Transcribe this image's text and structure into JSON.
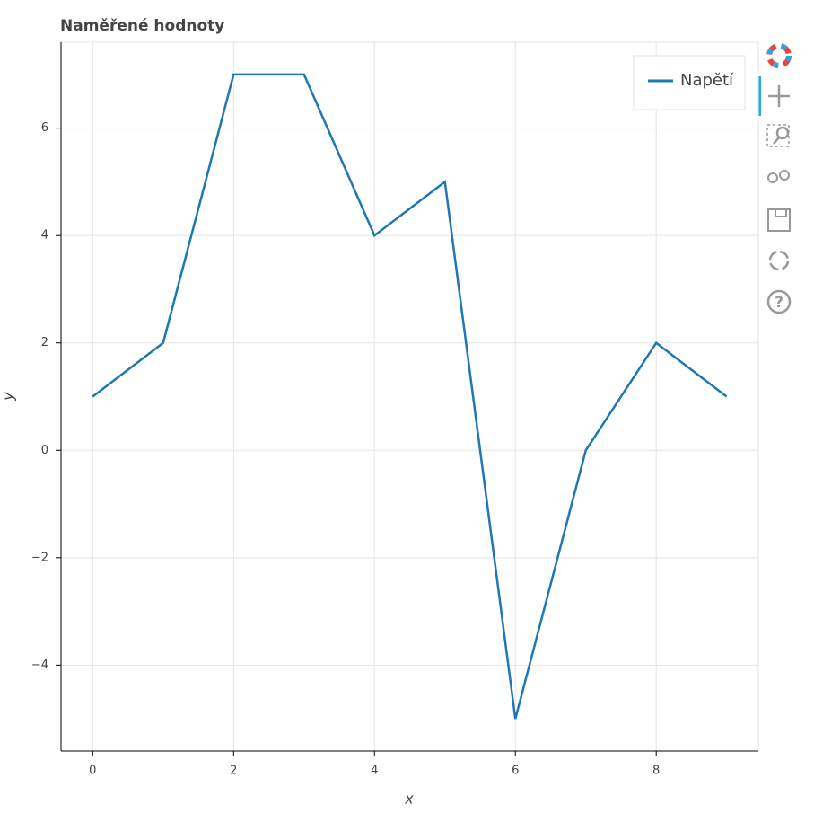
{
  "chart_data": {
    "type": "line",
    "title": "Naměřené hodnoty",
    "x_label": "x",
    "y_label": "y",
    "x": [
      0,
      1,
      2,
      3,
      4,
      5,
      6,
      7,
      8,
      9
    ],
    "series": [
      {
        "name": "Napětí",
        "color": "#1f77b4",
        "values": [
          1,
          2,
          7,
          7,
          4,
          5,
          -5,
          0,
          2,
          1
        ]
      }
    ],
    "xlim": [
      -0.45,
      9.45
    ],
    "ylim": [
      -5.6,
      7.6
    ],
    "xticks": [
      0,
      2,
      4,
      6,
      8
    ],
    "yticks": [
      {
        "value": -4,
        "label": "−4"
      },
      {
        "value": -2,
        "label": "−2"
      },
      0,
      2,
      4,
      6
    ],
    "grid": true,
    "legend_position": "top-right"
  }
}
